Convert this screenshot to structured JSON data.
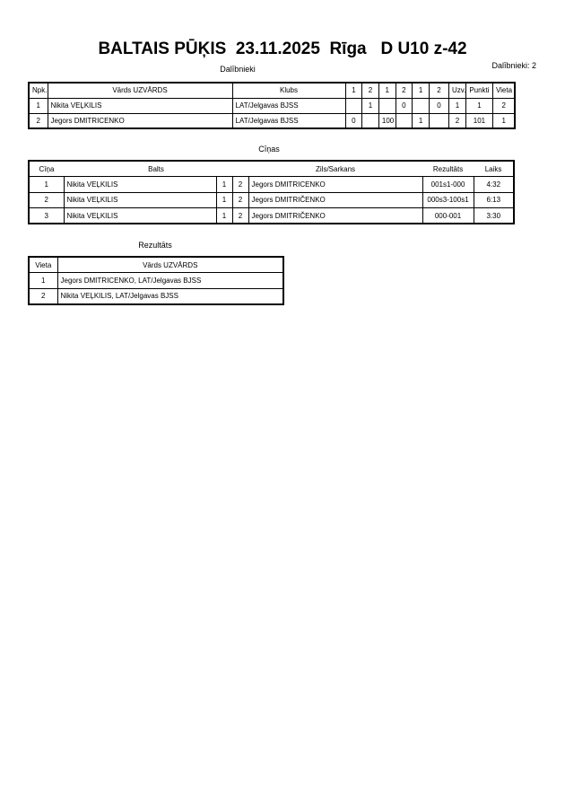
{
  "header": {
    "title": "BALTAIS PŪĶIS  23.11.2025  Rīga   D U10 z-42",
    "section": "Dalībnieki",
    "count": "Dalībnieki: 2"
  },
  "participants": {
    "headers": [
      "Npk.",
      "Vārds UZVĀRDS",
      "Klubs",
      "1",
      "2",
      "1",
      "2",
      "1",
      "2",
      "Uzv.",
      "Punkti",
      "Vieta"
    ],
    "rows": [
      [
        "1",
        "Nikita VEĻKILIS",
        "LAT/Jelgavas BJSS",
        null,
        "1",
        null,
        "0",
        null,
        "0",
        "1",
        "1",
        "2"
      ],
      [
        "2",
        "Jegors DMITRICENKO",
        "LAT/Jelgavas BJSS",
        "0",
        null,
        "100",
        null,
        "1",
        null,
        "2",
        "101",
        "1"
      ]
    ]
  },
  "bouts": {
    "title": "Cīņas",
    "headers": [
      "Cīņa",
      "Balts",
      "Zils/Sarkans",
      "Rezultāts",
      "Laiks"
    ],
    "rows": [
      [
        "1",
        "Nikita VEĻKILIS",
        "1",
        "2",
        "Jegors DMITRICENKO",
        "001s1-000",
        "4:32"
      ],
      [
        "2",
        "Nikita VEĻKILIS",
        "1",
        "2",
        "Jegors DMITRIČENKO",
        "000s3-100s1",
        "6:13"
      ],
      [
        "3",
        "Nikita VEĻKILIS",
        "1",
        "2",
        "Jegors DMITRIČENKO",
        "000-001",
        "3:30"
      ]
    ]
  },
  "results": {
    "title": "Rezultāts",
    "headers": [
      "Vieta",
      "Vārds UZVĀRDS"
    ],
    "rows": [
      [
        "1",
        "Jegors DMITRICENKO, LAT/Jelgavas BJSS"
      ],
      [
        "2",
        "Nikita VEĻKILIS, LAT/Jelgavas BJSS"
      ]
    ]
  }
}
